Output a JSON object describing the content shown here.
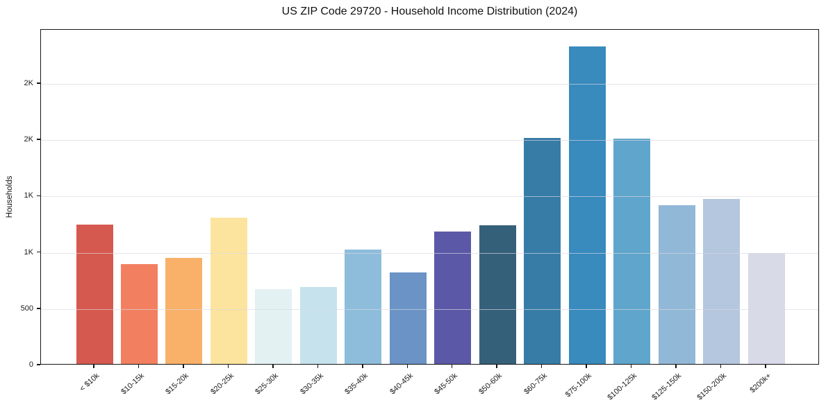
{
  "chart_data": {
    "type": "bar",
    "title": "US ZIP Code 29720 - Household Income Distribution (2024)",
    "xlabel": "",
    "ylabel": "Households",
    "categories": [
      "< $10k",
      "$10-15k",
      "$15-20k",
      "$20-25k",
      "$25-30k",
      "$30-35k",
      "$35-40k",
      "$40-45k",
      "$45-50k",
      "$50-60k",
      "$60-75k",
      "$75-100k",
      "$100-125k",
      "$125-150k",
      "$150-200k",
      "$200k+"
    ],
    "values": [
      1235,
      885,
      945,
      1300,
      665,
      685,
      1015,
      815,
      1175,
      1230,
      2010,
      2820,
      2000,
      1410,
      1465,
      985
    ],
    "bar_colors": [
      "#d6594f",
      "#f28060",
      "#f9b16a",
      "#fde49e",
      "#e3f1f3",
      "#c6e3ed",
      "#8dbddb",
      "#6b93c6",
      "#5b59a7",
      "#35607a",
      "#377ca6",
      "#398abd",
      "#60a5cc",
      "#92b8d8",
      "#b5c7df",
      "#d8dae8"
    ],
    "ylim": [
      0,
      2980
    ],
    "yticks": [
      {
        "value": 0,
        "label": "0"
      },
      {
        "value": 500,
        "label": "500"
      },
      {
        "value": 1000,
        "label": "1K"
      },
      {
        "value": 1500,
        "label": "1K"
      },
      {
        "value": 2000,
        "label": "2K"
      },
      {
        "value": 2500,
        "label": "2K"
      }
    ],
    "grid": "horizontal-light",
    "legend": "none",
    "frame": "full-box"
  }
}
